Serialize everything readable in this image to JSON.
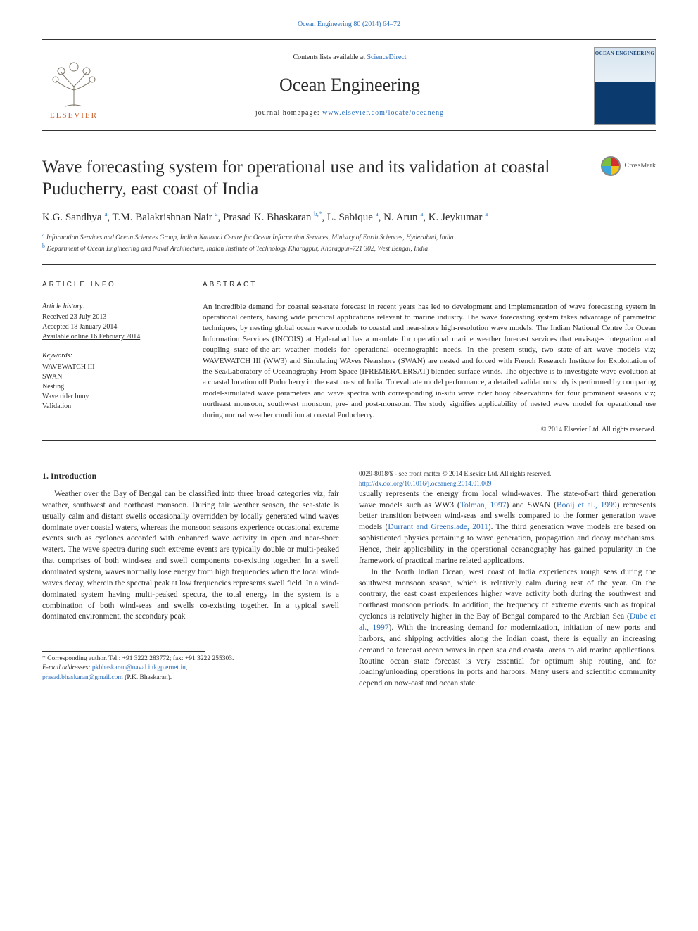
{
  "header": {
    "citation": "Ocean Engineering 80 (2014) 64–72",
    "contents_line_prefix": "Contents lists available at ",
    "contents_link": "ScienceDirect",
    "journal_name": "Ocean Engineering",
    "homepage_prefix": "journal homepage: ",
    "homepage_url": "www.elsevier.com/locate/oceaneng",
    "publisher_logo_text": "ELSEVIER",
    "cover_text": "OCEAN ENGINEERING"
  },
  "crossmark": {
    "label": "CrossMark"
  },
  "title": "Wave forecasting system for operational use and its validation at coastal Puducherry, east coast of India",
  "authors_html": "K.G. Sandhya <sup>a</sup>, T.M. Balakrishnan Nair <sup>a</sup>, Prasad K. Bhaskaran <sup>b,*</sup>, L. Sabique <sup>a</sup>, N. Arun <sup>a</sup>, K. Jeykumar <sup>a</sup>",
  "affiliations": [
    {
      "sup": "a",
      "text": "Information Services and Ocean Sciences Group, Indian National Centre for Ocean Information Services, Ministry of Earth Sciences, Hyderabad, India"
    },
    {
      "sup": "b",
      "text": "Department of Ocean Engineering and Naval Architecture, Indian Institute of Technology Kharagpur, Kharagpur-721 302, West Bengal, India"
    }
  ],
  "article_info": {
    "head": "ARTICLE INFO",
    "history_label": "Article history:",
    "history": [
      "Received 23 July 2013",
      "Accepted 18 January 2014",
      "Available online 16 February 2014"
    ],
    "keywords_label": "Keywords:",
    "keywords": [
      "WAVEWATCH III",
      "SWAN",
      "Nesting",
      "Wave rider buoy",
      "Validation"
    ]
  },
  "abstract": {
    "head": "ABSTRACT",
    "text": "An incredible demand for coastal sea-state forecast in recent years has led to development and implementation of wave forecasting system in operational centers, having wide practical applications relevant to marine industry. The wave forecasting system takes advantage of parametric techniques, by nesting global ocean wave models to coastal and near-shore high-resolution wave models. The Indian National Centre for Ocean Information Services (INCOIS) at Hyderabad has a mandate for operational marine weather forecast services that envisages integration and coupling state-of-the-art weather models for operational oceanographic needs. In the present study, two state-of-art wave models viz; WAVEWATCH III (WW3) and Simulating WAves Nearshore (SWAN) are nested and forced with French Research Institute for Exploitation of the Sea/Laboratory of Oceanography From Space (IFREMER/CERSAT) blended surface winds. The objective is to investigate wave evolution at a coastal location off Puducherry in the east coast of India. To evaluate model performance, a detailed validation study is performed by comparing model-simulated wave parameters and wave spectra with corresponding in-situ wave rider buoy observations for four prominent seasons viz; northeast monsoon, southwest monsoon, pre- and post-monsoon. The study signifies applicability of nested wave model for operational use during normal weather condition at coastal Puducherry.",
    "copyright": "© 2014 Elsevier Ltd. All rights reserved."
  },
  "intro": {
    "heading": "1.  Introduction",
    "p1": "Weather over the Bay of Bengal can be classified into three broad categories viz; fair weather, southwest and northeast monsoon. During fair weather season, the sea-state is usually calm and distant swells occasionally overridden by locally generated wind waves dominate over coastal waters, whereas the monsoon seasons experience occasional extreme events such as cyclones accorded with enhanced wave activity in open and near-shore waters. The wave spectra during such extreme events are typically double or multi-peaked that comprises of both wind-sea and swell components co-existing together. In a swell dominated system, waves normally lose energy from high frequencies when the local wind-waves decay, wherein the spectral peak at low frequencies represents swell field. In a wind-dominated system having multi-peaked spectra, the total energy in the system is a combination of both wind-seas and swells co-existing together. In a typical swell dominated environment, the secondary peak",
    "p2a": "usually represents the energy from local wind-waves. The state-of-art third generation wave models such as WW3 (",
    "cite1": "Tolman, 1997",
    "p2b": ") and SWAN (",
    "cite2": "Booij et al., 1999",
    "p2c": ") represents better transition between wind-seas and swells compared to the former generation wave models (",
    "cite3": "Durrant and Greenslade, 2011",
    "p2d": "). The third generation wave models are based on sophisticated physics pertaining to wave generation, propagation and decay mechanisms. Hence, their applicability in the operational oceanography has gained popularity in the framework of practical marine related applications.",
    "p3a": "In the North Indian Ocean, west coast of India experiences rough seas during the southwest monsoon season, which is relatively calm during rest of the year. On the contrary, the east coast experiences higher wave activity both during the southwest and northeast monsoon periods. In addition, the frequency of extreme events such as tropical cyclones is relatively higher in the Bay of Bengal compared to the Arabian Sea (",
    "cite4": "Dube et al., 1997",
    "p3b": "). With the increasing demand for modernization, initiation of new ports and harbors, and shipping activities along the Indian coast, there is equally an increasing demand to forecast ocean waves in open sea and coastal areas to aid marine applications. Routine ocean state forecast is very essential for optimum ship routing, and for loading/unloading operations in ports and harbors. Many users and scientific community depend on now-cast and ocean state"
  },
  "footnotes": {
    "corr_prefix": "* Corresponding author. Tel.: +91 3222 283772; fax: +91 3222 255303.",
    "email_label": "E-mail addresses: ",
    "email1": "pkbhaskaran@naval.iitkgp.ernet.in",
    "email_sep": ", ",
    "email2": "prasad.bhaskaran@gmail.com",
    "email_who": " (P.K. Bhaskaran)."
  },
  "bottom": {
    "issn": "0029-8018/$ - see front matter © 2014 Elsevier Ltd. All rights reserved.",
    "doi": "http://dx.doi.org/10.1016/j.oceaneng.2014.01.009"
  },
  "colors": {
    "link": "#2a6ebb",
    "elsevier_orange": "#c8602b",
    "text": "#2b2b2b"
  }
}
